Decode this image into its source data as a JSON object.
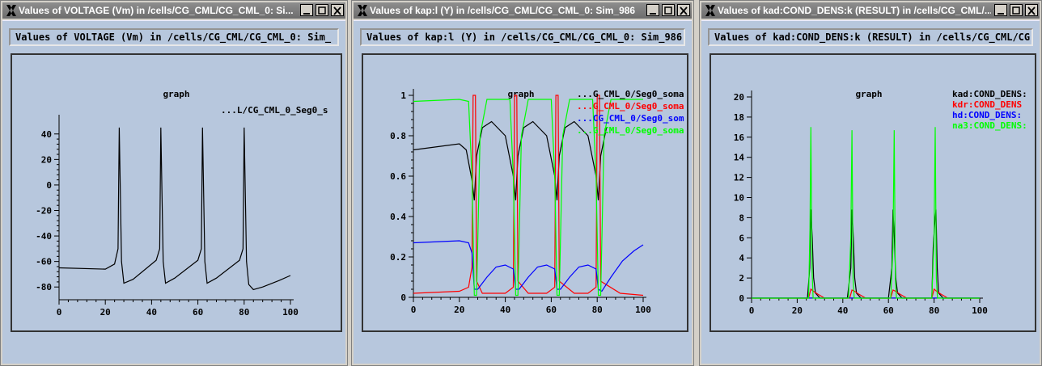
{
  "windows": [
    {
      "title": "Values of VOLTAGE (Vm) in /cells/CG_CML/CG_CML_0: Si...",
      "header": "Values of VOLTAGE (Vm) in /cells/CG_CML/CG_CML_0: Sim_",
      "graph_title": "graph",
      "legend": [
        "...L/CG_CML_0_Seg0_s"
      ],
      "y_ticks": [
        "40",
        "20",
        "0",
        "-20",
        "-40",
        "-60",
        "-80"
      ],
      "x_ticks": [
        "0",
        "20",
        "40",
        "60",
        "80",
        "100"
      ]
    },
    {
      "title": "Values of kap:l (Y) in /cells/CG_CML/CG_CML_0: Sim_986",
      "header": "Values of kap:l (Y) in /cells/CG_CML/CG_CML_0: Sim_986",
      "graph_title": "graph",
      "legend": [
        "...G_CML_0/Seg0_soma",
        "...G_CML_0/Seg0_soma",
        "...CG_CML_0/Seg0_som",
        "...G_CML_0/Seg0_soma"
      ],
      "y_ticks": [
        "1",
        "0.8",
        "0.6",
        "0.4",
        "0.2",
        "0"
      ],
      "x_ticks": [
        "0",
        "20",
        "40",
        "60",
        "80",
        "100"
      ]
    },
    {
      "title": "Values of kad:COND_DENS:k (RESULT) in /cells/CG_CML/...",
      "header": "Values of kad:COND_DENS:k (RESULT) in /cells/CG_CML/CG",
      "graph_title": "graph",
      "legend": [
        "kad:COND_DENS:",
        "kdr:COND_DENS",
        "hd:COND_DENS:",
        "na3:COND_DENS:"
      ],
      "y_ticks": [
        "20",
        "18",
        "16",
        "14",
        "12",
        "10",
        "8",
        "6",
        "4",
        "2",
        "0"
      ],
      "x_ticks": [
        "0",
        "20",
        "40",
        "60",
        "80",
        "100"
      ]
    }
  ],
  "colors": {
    "black": "#000000",
    "red": "#ff0000",
    "blue": "#0000ff",
    "green": "#00ff00",
    "background": "#b7c7dd"
  },
  "chart_data": [
    {
      "type": "line",
      "title": "graph",
      "xlim": [
        0,
        100
      ],
      "ylim": [
        -90,
        50
      ],
      "series": [
        {
          "name": "...L/CG_CML_0_Seg0_s",
          "color": "#000000",
          "x": [
            0,
            20,
            24,
            25.5,
            26,
            27,
            28,
            32,
            42,
            43.5,
            44,
            45,
            46,
            50,
            60,
            61.5,
            62,
            63,
            64,
            68,
            78,
            79.5,
            80,
            81,
            82,
            84,
            88,
            95,
            100
          ],
          "y": [
            -65,
            -66,
            -62,
            -50,
            45,
            -60,
            -77,
            -74,
            -59,
            -50,
            45,
            -60,
            -77,
            -73,
            -59,
            -50,
            45,
            -60,
            -77,
            -73,
            -59,
            -50,
            45,
            -60,
            -78,
            -82,
            -80,
            -75,
            -71
          ]
        }
      ]
    },
    {
      "type": "line",
      "title": "graph",
      "xlim": [
        0,
        100
      ],
      "ylim": [
        0,
        1
      ],
      "series": [
        {
          "name": "...G_CML_0/Seg0_soma",
          "color": "#000000",
          "x": [
            0,
            20,
            23,
            25.5,
            26.5,
            27.5,
            30,
            34,
            40,
            43.5,
            44.5,
            45.5,
            48,
            52,
            58,
            61.5,
            62.5,
            63.5,
            66,
            70,
            76,
            79.5,
            80.5,
            81.5,
            84
          ],
          "y": [
            0.73,
            0.76,
            0.73,
            0.58,
            0.48,
            0.7,
            0.84,
            0.87,
            0.8,
            0.6,
            0.48,
            0.7,
            0.84,
            0.87,
            0.8,
            0.6,
            0.48,
            0.7,
            0.84,
            0.87,
            0.8,
            0.6,
            0.48,
            0.7,
            0.84
          ]
        },
        {
          "name": "...G_CML_0/Seg0_soma",
          "color": "#ff0000",
          "x": [
            0,
            20,
            24,
            25.5,
            26,
            27,
            27.5,
            30,
            40,
            43.5,
            44,
            45,
            45.5,
            50,
            58,
            61.5,
            62,
            63,
            63.5,
            70,
            76,
            79.5,
            80,
            81,
            81.5,
            90,
            100
          ],
          "y": [
            0.02,
            0.03,
            0.05,
            0.15,
            1.0,
            1.0,
            0.08,
            0.02,
            0.02,
            0.05,
            1.0,
            1.0,
            0.08,
            0.02,
            0.02,
            0.05,
            1.0,
            1.0,
            0.08,
            0.02,
            0.02,
            0.05,
            1.0,
            1.0,
            0.08,
            0.02,
            0.01
          ]
        },
        {
          "name": "...CG_CML_0/Seg0_som",
          "color": "#0000ff",
          "x": [
            0,
            20,
            24,
            25.5,
            26.5,
            28,
            32,
            36,
            40,
            43.5,
            44.5,
            46,
            50,
            54,
            58,
            61.5,
            62.5,
            64,
            68,
            72,
            76,
            79.5,
            80.5,
            82,
            86,
            91,
            96,
            100
          ],
          "y": [
            0.27,
            0.28,
            0.27,
            0.22,
            0.04,
            0.04,
            0.1,
            0.15,
            0.16,
            0.14,
            0.04,
            0.04,
            0.1,
            0.15,
            0.16,
            0.14,
            0.04,
            0.04,
            0.1,
            0.15,
            0.16,
            0.14,
            0.04,
            0.03,
            0.1,
            0.18,
            0.23,
            0.26
          ]
        },
        {
          "name": "...G_CML_0/Seg0_soma",
          "color": "#00ff00",
          "x": [
            0,
            20,
            24,
            25.5,
            26.5,
            27.5,
            29,
            32,
            42,
            43.5,
            44.5,
            45.5,
            47,
            50,
            60,
            61.5,
            62.5,
            63.5,
            65,
            68,
            78,
            79.5,
            80.5,
            81.5,
            83,
            86,
            100
          ],
          "y": [
            0.97,
            0.98,
            0.97,
            0.6,
            0.01,
            0.01,
            0.8,
            0.98,
            0.98,
            0.6,
            0.01,
            0.01,
            0.8,
            0.98,
            0.98,
            0.6,
            0.01,
            0.01,
            0.8,
            0.98,
            0.98,
            0.6,
            0.01,
            0.01,
            0.8,
            0.98,
            0.98
          ]
        }
      ]
    },
    {
      "type": "line",
      "title": "graph",
      "xlim": [
        0,
        100
      ],
      "ylim": [
        0,
        20
      ],
      "series": [
        {
          "name": "kad:COND_DENS:",
          "color": "#000000",
          "x": [
            0,
            24.5,
            25.5,
            26,
            26.6,
            27.2,
            28,
            30,
            42,
            43.5,
            44,
            44.6,
            45.2,
            46,
            48,
            60,
            61.5,
            62,
            62.6,
            63.2,
            64,
            66,
            79,
            79.6,
            80.2,
            80.8,
            81.4,
            82,
            84,
            100
          ],
          "y": [
            0,
            0,
            3,
            8.8,
            6,
            2,
            0.5,
            0,
            0,
            3,
            8.8,
            6,
            2,
            0.5,
            0,
            0,
            3,
            8.8,
            6,
            2,
            0.5,
            0,
            0,
            5,
            7.2,
            8.8,
            3,
            0.5,
            0,
            0
          ]
        },
        {
          "name": "kdr:COND_DENS",
          "color": "#ff0000",
          "x": [
            0,
            25,
            26,
            27,
            29,
            32,
            43,
            44,
            45,
            47,
            50,
            61,
            62,
            63,
            65,
            68,
            79,
            80,
            81,
            83,
            86,
            100
          ],
          "y": [
            0,
            0,
            0.9,
            0.7,
            0.4,
            0,
            0,
            0.8,
            0.7,
            0.4,
            0,
            0,
            0.8,
            0.7,
            0.4,
            0,
            0,
            0.9,
            0.7,
            0.4,
            0,
            0
          ]
        },
        {
          "name": "hd:COND_DENS:",
          "color": "#0000ff",
          "x": [
            0,
            100
          ],
          "y": [
            0.02,
            0.02
          ]
        },
        {
          "name": "na3:COND_DENS:",
          "color": "#00ff00",
          "x": [
            0,
            25,
            25.6,
            26,
            26.5,
            27,
            42.5,
            43.5,
            44,
            44.5,
            45,
            61,
            62,
            62.5,
            63,
            63.5,
            79,
            80,
            80.5,
            81,
            81.5,
            100
          ],
          "y": [
            0,
            0,
            7,
            17,
            3,
            0,
            0,
            6,
            16.7,
            2,
            0,
            0,
            5,
            16.7,
            2,
            0,
            0,
            6,
            17,
            2,
            0,
            0
          ]
        }
      ]
    }
  ]
}
